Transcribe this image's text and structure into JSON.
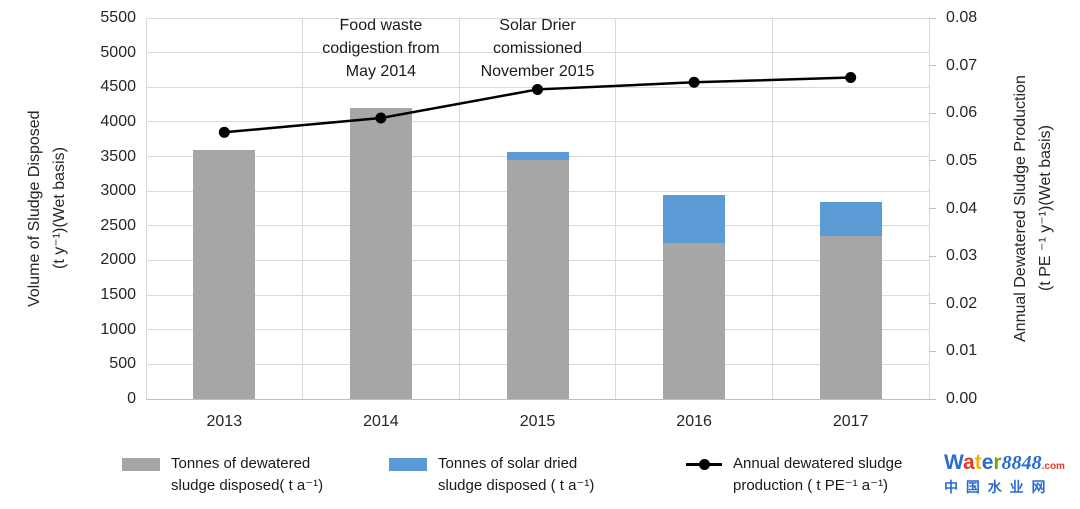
{
  "chart_data": {
    "type": "bar+line combo (stacked bars, line on secondary axis)",
    "categories": [
      "2013",
      "2014",
      "2015",
      "2016",
      "2017"
    ],
    "series": [
      {
        "name": "Tonnes of dewatered sludge disposed( t a⁻¹)",
        "type": "bar",
        "stack": "disposed",
        "axis": "left",
        "color": "#a6a6a6",
        "values": [
          3600,
          4200,
          3450,
          2250,
          2350
        ]
      },
      {
        "name": "Tonnes of solar dried sludge disposed ( t a⁻¹)",
        "type": "bar",
        "stack": "disposed",
        "axis": "left",
        "color": "#5b9bd5",
        "values": [
          0,
          0,
          120,
          700,
          500
        ]
      },
      {
        "name": "Annual dewatered sludge production ( t PE⁻¹ a⁻¹)",
        "type": "line",
        "axis": "right",
        "marker": "circle",
        "color": "#000000",
        "values": [
          0.056,
          0.059,
          0.065,
          0.0665,
          0.0675
        ]
      }
    ],
    "left_axis": {
      "title_line1": "Volume of Sludge Disposed",
      "title_line2": "(t  y⁻¹)(Wet basis)",
      "min": 0,
      "max": 5500,
      "step": 500,
      "tick_labels": [
        "0",
        "500",
        "1000",
        "1500",
        "2000",
        "2500",
        "3000",
        "3500",
        "4000",
        "4500",
        "5000",
        "5500"
      ]
    },
    "right_axis": {
      "title_line1": "Annual Dewatered Sludge Production",
      "title_line2": "(t  PE ⁻¹ y⁻¹)(Wet basis)",
      "min": 0,
      "max": 0.08,
      "step": 0.01,
      "tick_labels": [
        "0.00",
        "0.01",
        "0.02",
        "0.03",
        "0.04",
        "0.05",
        "0.06",
        "0.07",
        "0.08"
      ]
    },
    "annotations": [
      {
        "category": "2014",
        "lines": [
          "Food waste",
          "codigestion from",
          "May 2014"
        ]
      },
      {
        "category": "2015",
        "lines": [
          "Solar Drier",
          "comissioned",
          "November 2015"
        ]
      }
    ],
    "grid": true,
    "grid_color": "#d9d9d9",
    "axis_line_color": "#bfbfbf",
    "legend_position": "bottom"
  },
  "legend": {
    "items": [
      {
        "marker": "bar",
        "color": "#a6a6a6",
        "line1": "Tonnes of dewatered",
        "line2": "sludge disposed( t a⁻¹)"
      },
      {
        "marker": "bar",
        "color": "#5b9bd5",
        "line1": "Tonnes of solar dried",
        "line2": "sludge disposed ( t a⁻¹)"
      },
      {
        "marker": "line-dot",
        "color": "#000000",
        "line1": "Annual dewatered sludge",
        "line2": "production ( t PE⁻¹ a⁻¹)"
      }
    ]
  },
  "watermark": {
    "letters": [
      {
        "ch": "W",
        "color": "#2a6bd2"
      },
      {
        "ch": "a",
        "color": "#e23a2e"
      },
      {
        "ch": "t",
        "color": "#f0b400"
      },
      {
        "ch": "e",
        "color": "#2a6bd2"
      },
      {
        "ch": "r",
        "color": "#6aa81e"
      }
    ],
    "number": "8848",
    "number_color": "#2a6bd2",
    "domain": ".com",
    "domain_color": "#e23a2e",
    "subtitle": "中 国 水 业 网",
    "subtitle_color": "#2a6bd2"
  }
}
